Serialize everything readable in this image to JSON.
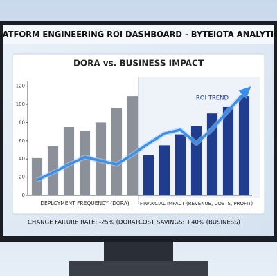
{
  "header": {
    "title": "PLATFORM ENGINEERING ROI DASHBOARD - BYTEIOTA ANALYTICS"
  },
  "chart_data": {
    "type": "bar",
    "title": "DORA vs. BUSINESS IMPACT",
    "categories": [
      null,
      null,
      null,
      null,
      null,
      null,
      null,
      null,
      null,
      null,
      null,
      null,
      null,
      null
    ],
    "series": [
      {
        "name": "DEPLOYMENT FREQUENCY (DORA)",
        "color": "#8c9099",
        "values": [
          41,
          54,
          75,
          71,
          80,
          96,
          109,
          null,
          null,
          null,
          null,
          null,
          null,
          null
        ]
      },
      {
        "name": "FINANCIAL IMPACT (REVENUE, COSTS, PROFIT)",
        "color": "#1f3d8c",
        "values": [
          null,
          null,
          null,
          null,
          null,
          null,
          null,
          44,
          55,
          67,
          76,
          90,
          97,
          109
        ]
      },
      {
        "name": "ROI TREND",
        "type": "line",
        "color": "#3f8ee6",
        "values": [
          17,
          25,
          34,
          42,
          38,
          34,
          45,
          57,
          68,
          72,
          57,
          73,
          93,
          112
        ]
      }
    ],
    "ylim": [
      0,
      125
    ],
    "yticks": [
      0,
      20,
      40,
      60,
      80,
      100,
      120
    ]
  },
  "footer": {
    "left": "CHANGE FAILURE RATE: -25% (DORA)",
    "right": "COST SAVINGS: +40% (BUSINESS)"
  }
}
